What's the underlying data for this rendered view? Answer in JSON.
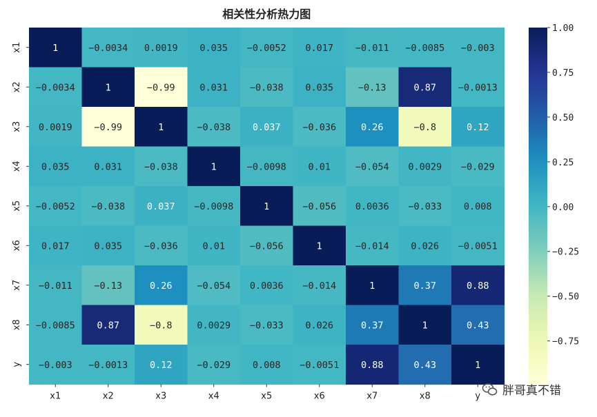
{
  "chart_data": {
    "type": "heatmap",
    "title": "相关性分析热力图",
    "labels": [
      "x1",
      "x2",
      "x3",
      "x4",
      "x5",
      "x6",
      "x7",
      "x8",
      "y"
    ],
    "matrix": [
      [
        "1",
        "-0.0034",
        "0.0019",
        "0.035",
        "-0.0052",
        "0.017",
        "-0.011",
        "-0.0085",
        "-0.003"
      ],
      [
        "-0.0034",
        "1",
        "-0.99",
        "0.031",
        "-0.038",
        "0.035",
        "-0.13",
        "0.87",
        "-0.0013"
      ],
      [
        "0.0019",
        "-0.99",
        "1",
        "-0.038",
        "0.037",
        "-0.036",
        "0.26",
        "-0.8",
        "0.12"
      ],
      [
        "0.035",
        "0.031",
        "-0.038",
        "1",
        "-0.0098",
        "0.01",
        "-0.054",
        "0.0029",
        "-0.029"
      ],
      [
        "-0.0052",
        "-0.038",
        "0.037",
        "-0.0098",
        "1",
        "-0.056",
        "0.0036",
        "-0.033",
        "0.008"
      ],
      [
        "0.017",
        "0.035",
        "-0.036",
        "0.01",
        "-0.056",
        "1",
        "-0.014",
        "0.026",
        "-0.0051"
      ],
      [
        "-0.011",
        "-0.13",
        "0.26",
        "-0.054",
        "0.0036",
        "-0.014",
        "1",
        "0.37",
        "0.88"
      ],
      [
        "-0.0085",
        "0.87",
        "-0.8",
        "0.0029",
        "-0.033",
        "0.026",
        "0.37",
        "1",
        "0.43"
      ],
      [
        "-0.003",
        "-0.0013",
        "0.12",
        "-0.029",
        "0.008",
        "-0.0051",
        "0.88",
        "0.43",
        "1"
      ]
    ],
    "colormap": "YlGnBu",
    "vmin": -0.99,
    "vmax": 1.0,
    "colorbar_ticks": [
      "1.00",
      "0.75",
      "0.50",
      "0.25",
      "0.00",
      "-0.25",
      "-0.50",
      "-0.75"
    ]
  },
  "watermark": {
    "text": "胖哥真不错",
    "icon": "wechat-icon"
  }
}
